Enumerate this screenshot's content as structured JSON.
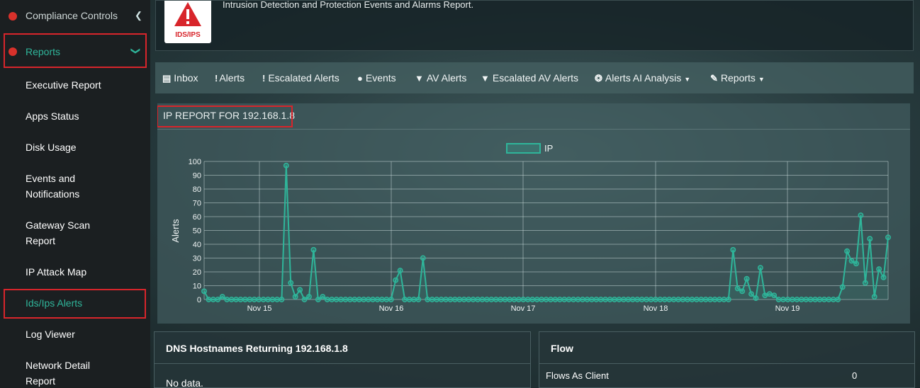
{
  "sidebar": {
    "top_item": {
      "label": "Compliance Controls",
      "icon": "gear-icon"
    },
    "reports": {
      "label": "Reports",
      "icon": "pie-chart-icon"
    },
    "items": [
      {
        "label": "Executive Report"
      },
      {
        "label": "Apps Status"
      },
      {
        "label": "Disk Usage"
      },
      {
        "label": "Events and Notifications"
      },
      {
        "label": "Gateway Scan Report"
      },
      {
        "label": "IP Attack Map"
      },
      {
        "label": "Ids/Ips Alerts"
      },
      {
        "label": "Log Viewer"
      },
      {
        "label": "Network Detail Report"
      }
    ]
  },
  "banner": {
    "logo_text": "IDS/IPS",
    "description": "Intrusion Detection and Protection Events and Alarms Report."
  },
  "tabs": [
    {
      "label": "Inbox",
      "icon": "inbox-icon"
    },
    {
      "label": "Alerts",
      "icon": "exclamation-icon"
    },
    {
      "label": "Escalated Alerts",
      "icon": "exclamation-icon"
    },
    {
      "label": "Events",
      "icon": "exclamation-circle-icon"
    },
    {
      "label": "AV Alerts",
      "icon": "shield-icon"
    },
    {
      "label": "Escalated AV Alerts",
      "icon": "shield-icon"
    },
    {
      "label": "Alerts AI Analysis",
      "icon": "ai-icon"
    },
    {
      "label": "Reports",
      "icon": "pencil-icon"
    }
  ],
  "chart_panel": {
    "title": "IP REPORT FOR 192.168.1.8"
  },
  "chart_data": {
    "type": "line",
    "legend": "IP",
    "legend_position": "top",
    "ylabel": "Alerts",
    "ylim": [
      0,
      100
    ],
    "yticks": [
      0,
      10,
      20,
      30,
      40,
      50,
      60,
      70,
      80,
      90,
      100
    ],
    "xtick_labels": [
      "Nov 15",
      "Nov 16",
      "Nov 17",
      "Nov 18",
      "Nov 19"
    ],
    "grid": true,
    "color": "#2fb59a",
    "series": [
      {
        "values": [
          6,
          0,
          0,
          0,
          2,
          0,
          0,
          0,
          0,
          0,
          0,
          0,
          0,
          0,
          0,
          0,
          0,
          0,
          97,
          12,
          2,
          7,
          0,
          2,
          36,
          0,
          2,
          0,
          0,
          0,
          0,
          0,
          0,
          0,
          0,
          0,
          0,
          0,
          0,
          0,
          0,
          0,
          14,
          21,
          0,
          0,
          0,
          0,
          30,
          0,
          0,
          0,
          0,
          0,
          0,
          0,
          0,
          0,
          0,
          0,
          0,
          0,
          0,
          0,
          0,
          0,
          0,
          0,
          0,
          0,
          0,
          0,
          0,
          0,
          0,
          0,
          0,
          0,
          0,
          0,
          0,
          0,
          0,
          0,
          0,
          0,
          0,
          0,
          0,
          0,
          0,
          0,
          0,
          0,
          0,
          0,
          0,
          0,
          0,
          0,
          0,
          0,
          0,
          0,
          0,
          0,
          0,
          0,
          0,
          0,
          0,
          0,
          0,
          0,
          0,
          0,
          36,
          8,
          6,
          15,
          4,
          1,
          23,
          3,
          4,
          3,
          0,
          0,
          0,
          0,
          0,
          0,
          0,
          0,
          0,
          0,
          0,
          0,
          0,
          0,
          9,
          35,
          28,
          26,
          61,
          12,
          44,
          2,
          22,
          16,
          45
        ]
      }
    ]
  },
  "dns_panel": {
    "title": "DNS Hostnames Returning 192.168.1.8",
    "body": "No data."
  },
  "flow_panel": {
    "title": "Flow",
    "rows": [
      {
        "label": "Flows As Client",
        "value": "0"
      }
    ]
  }
}
